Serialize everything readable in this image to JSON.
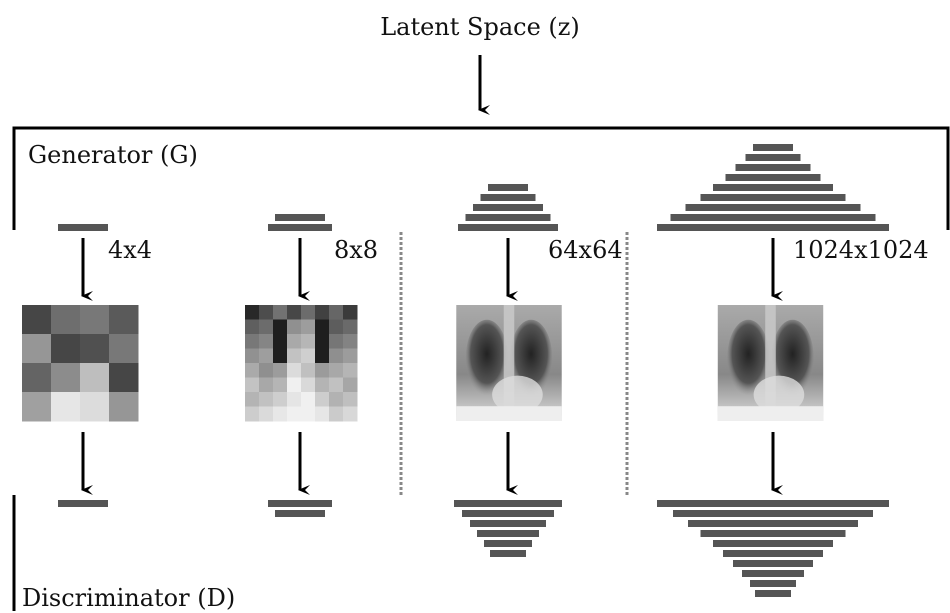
{
  "title": "Latent Space (z)",
  "generator": "Generator (G)",
  "discriminator": "Discriminator (D)",
  "stages": [
    {
      "label": "4x4"
    },
    {
      "label": "8x8"
    },
    {
      "label": "64x64"
    },
    {
      "label": "1024x1024"
    }
  ]
}
